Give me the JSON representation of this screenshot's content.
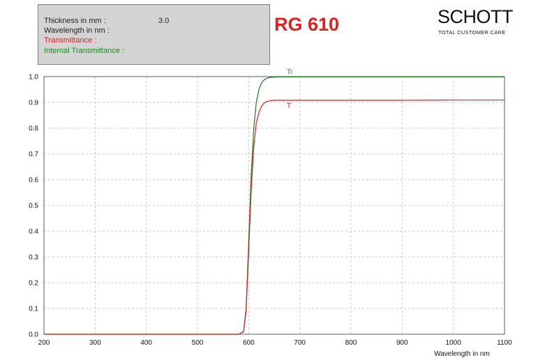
{
  "info": {
    "thickness_label": "Thickness in mm :",
    "thickness_value": "3.0",
    "wavelength_label": "Wavelength in nm :",
    "transmittance_label": "Transmittance :",
    "internal_label": "Internal Transmittance :",
    "transmittance_color": "#dd2222",
    "internal_color": "#1a8a1a"
  },
  "filter_name": "RG 610",
  "logo": {
    "main": "SCHOTT",
    "sub": "TOTAL CUSTOMER CARE"
  },
  "chart_data": {
    "type": "line",
    "xlabel": "Wavelength in nm",
    "ylabel": "",
    "xlim": [
      200,
      1100
    ],
    "ylim": [
      0,
      1.0
    ],
    "x_ticks": [
      200,
      300,
      400,
      500,
      600,
      700,
      800,
      900,
      1000,
      1100
    ],
    "y_ticks": [
      "0.0",
      "0.1",
      "0.2",
      "0.3",
      "0.4",
      "0.5",
      "0.6",
      "0.7",
      "0.8",
      "0.9",
      "1.0"
    ],
    "grid": true,
    "series": [
      {
        "name": "Ti",
        "color": "#1a7a1a",
        "x": [
          200,
          580,
          590,
          595,
          600,
          605,
          610,
          615,
          620,
          625,
          630,
          635,
          640,
          650,
          660,
          680,
          700,
          800,
          900,
          1000,
          1100
        ],
        "y": [
          0.0,
          0.0,
          0.01,
          0.1,
          0.35,
          0.62,
          0.8,
          0.9,
          0.95,
          0.975,
          0.987,
          0.993,
          0.996,
          0.998,
          0.999,
          0.999,
          0.999,
          0.999,
          0.999,
          0.999,
          0.999
        ]
      },
      {
        "name": "T",
        "color": "#cc2222",
        "x": [
          200,
          580,
          590,
          595,
          600,
          605,
          610,
          615,
          620,
          625,
          630,
          635,
          640,
          650,
          660,
          680,
          700,
          800,
          900,
          1000,
          1100
        ],
        "y": [
          0.0,
          0.0,
          0.01,
          0.09,
          0.32,
          0.56,
          0.73,
          0.82,
          0.86,
          0.885,
          0.897,
          0.903,
          0.906,
          0.908,
          0.908,
          0.908,
          0.908,
          0.908,
          0.908,
          0.909,
          0.909
        ]
      }
    ]
  }
}
